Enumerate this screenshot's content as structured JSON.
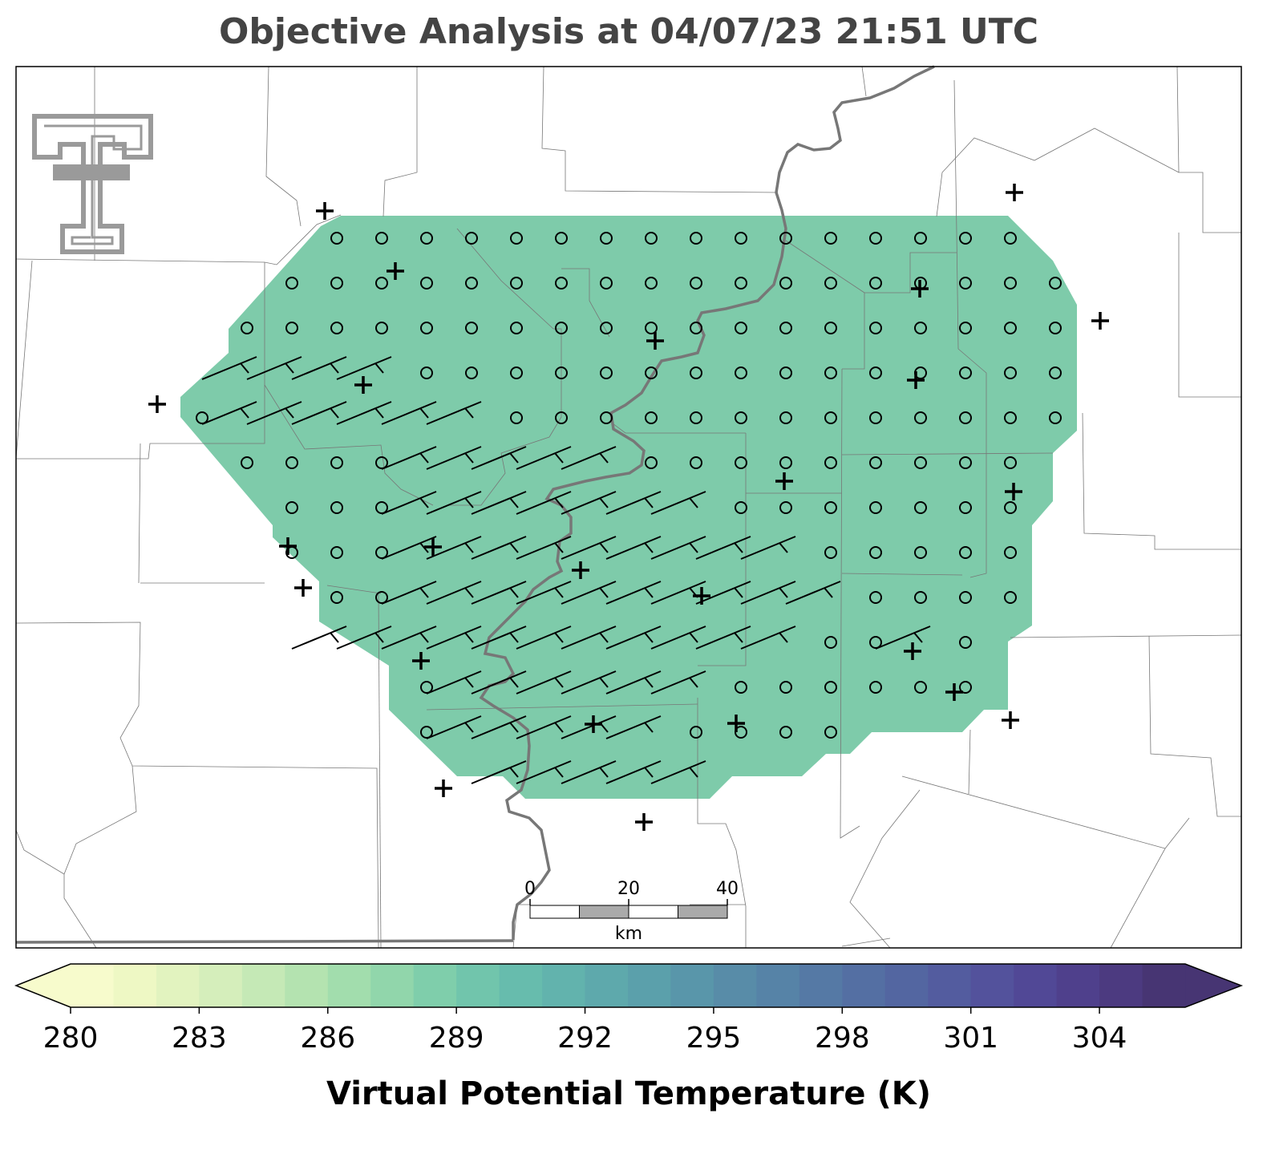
{
  "title": "Objective Analysis at 04/07/23 21:51 UTC",
  "colorbar": {
    "label": "Virtual Potential Temperature (K)",
    "range": [
      280,
      306
    ],
    "ticks": [
      280,
      283,
      286,
      289,
      292,
      295,
      298,
      301,
      304
    ],
    "colors": [
      "#f7fbcc",
      "#eef8c4",
      "#e2f3bf",
      "#d5eebb",
      "#c5e9b6",
      "#b4e3b0",
      "#a2ddad",
      "#91d6ab",
      "#7fceab",
      "#71c5ac",
      "#67bcad",
      "#62b3ad",
      "#5ea9ac",
      "#5ba0ab",
      "#5996aa",
      "#588ca8",
      "#5683a7",
      "#5579a5",
      "#546fa3",
      "#5366a1",
      "#535c9f",
      "#53529c",
      "#514896",
      "#4f408c",
      "#4c3a80",
      "#473573"
    ]
  },
  "scale_bar": {
    "ticks": [
      0,
      20,
      40
    ],
    "unit": "km"
  }
}
